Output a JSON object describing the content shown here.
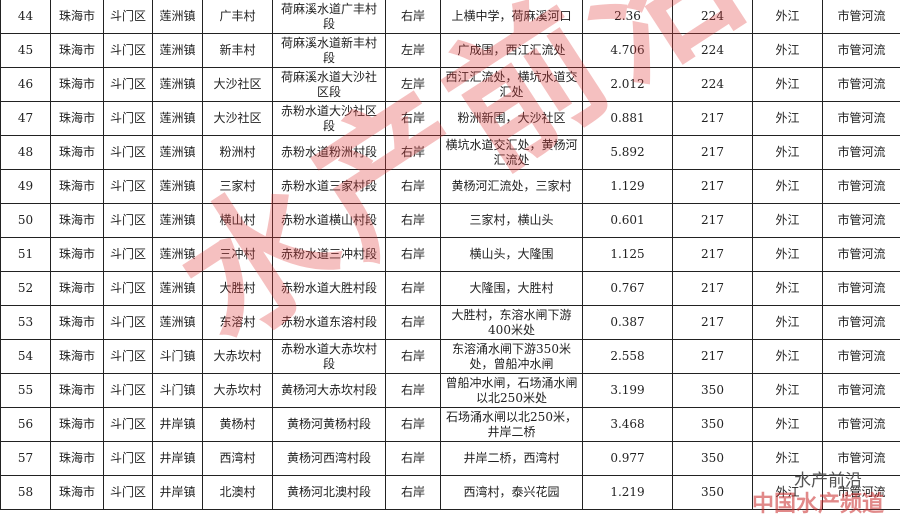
{
  "table": {
    "rows": [
      [
        "44",
        "珠海市",
        "斗门区",
        "莲洲镇",
        "广丰村",
        "荷麻溪水道广丰村段",
        "右岸",
        "上横中学，荷麻溪河口",
        "2.36",
        "224",
        "外江",
        "市管河流"
      ],
      [
        "45",
        "珠海市",
        "斗门区",
        "莲洲镇",
        "新丰村",
        "荷麻溪水道新丰村段",
        "左岸",
        "广成围，西江汇流处",
        "4.706",
        "224",
        "外江",
        "市管河流"
      ],
      [
        "46",
        "珠海市",
        "斗门区",
        "莲洲镇",
        "大沙社区",
        "荷麻溪水道大沙社区段",
        "左岸",
        "西江汇流处，横坑水道交汇处",
        "2.012",
        "224",
        "外江",
        "市管河流"
      ],
      [
        "47",
        "珠海市",
        "斗门区",
        "莲洲镇",
        "大沙社区",
        "赤粉水道大沙社区段",
        "右岸",
        "粉洲新围，大沙社区",
        "0.881",
        "217",
        "外江",
        "市管河流"
      ],
      [
        "48",
        "珠海市",
        "斗门区",
        "莲洲镇",
        "粉洲村",
        "赤粉水道粉洲村段",
        "右岸",
        "横坑水道交汇处，黄杨河汇流处",
        "5.892",
        "217",
        "外江",
        "市管河流"
      ],
      [
        "49",
        "珠海市",
        "斗门区",
        "莲洲镇",
        "三家村",
        "赤粉水道三家村段",
        "右岸",
        "黄杨河汇流处，三家村",
        "1.129",
        "217",
        "外江",
        "市管河流"
      ],
      [
        "50",
        "珠海市",
        "斗门区",
        "莲洲镇",
        "横山村",
        "赤粉水道横山村段",
        "右岸",
        "三家村，横山头",
        "0.601",
        "217",
        "外江",
        "市管河流"
      ],
      [
        "51",
        "珠海市",
        "斗门区",
        "莲洲镇",
        "三冲村",
        "赤粉水道三冲村段",
        "右岸",
        "横山头，大隆围",
        "1.125",
        "217",
        "外江",
        "市管河流"
      ],
      [
        "52",
        "珠海市",
        "斗门区",
        "莲洲镇",
        "大胜村",
        "赤粉水道大胜村段",
        "右岸",
        "大隆围，大胜村",
        "0.767",
        "217",
        "外江",
        "市管河流"
      ],
      [
        "53",
        "珠海市",
        "斗门区",
        "莲洲镇",
        "东溶村",
        "赤粉水道东溶村段",
        "右岸",
        "大胜村，东溶水闸下游400米处",
        "0.387",
        "217",
        "外江",
        "市管河流"
      ],
      [
        "54",
        "珠海市",
        "斗门区",
        "斗门镇",
        "大赤坎村",
        "赤粉水道大赤坎村段",
        "右岸",
        "东溶涌水闸下游350米处，曾船冲水闸",
        "2.558",
        "217",
        "外江",
        "市管河流"
      ],
      [
        "55",
        "珠海市",
        "斗门区",
        "斗门镇",
        "大赤坎村",
        "黄杨河大赤坎村段",
        "右岸",
        "曾船冲水闸，石场涌水闸以北250米处",
        "3.199",
        "350",
        "外江",
        "市管河流"
      ],
      [
        "56",
        "珠海市",
        "斗门区",
        "井岸镇",
        "黄杨村",
        "黄杨河黄杨村段",
        "右岸",
        "石场涌水闸以北250米，井岸二桥",
        "3.468",
        "350",
        "外江",
        "市管河流"
      ],
      [
        "57",
        "珠海市",
        "斗门区",
        "井岸镇",
        "西湾村",
        "黄杨河西湾村段",
        "右岸",
        "井岸二桥，西湾村",
        "0.977",
        "350",
        "外江",
        "市管河流"
      ],
      [
        "58",
        "珠海市",
        "斗门区",
        "井岸镇",
        "北澳村",
        "黄杨河北澳村段",
        "右岸",
        "西湾村，泰兴花园",
        "1.219",
        "350",
        "外江",
        "市管河流"
      ]
    ]
  },
  "watermark": "水产前沿",
  "logo": {
    "top": "水产前沿",
    "bottom": "中国水产频道"
  }
}
